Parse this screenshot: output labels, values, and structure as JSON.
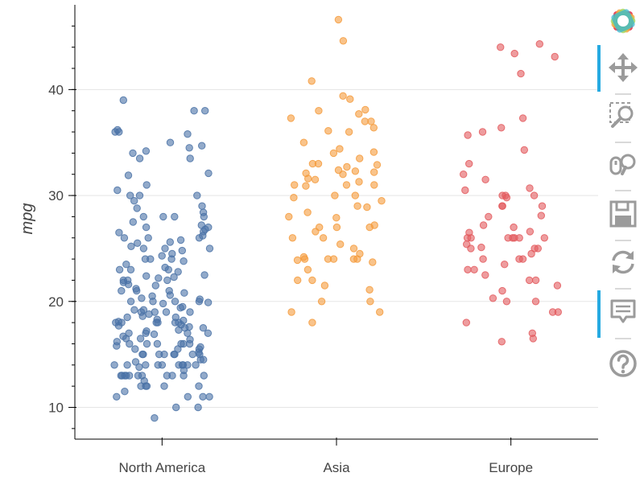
{
  "chart_data": {
    "type": "scatter",
    "ylabel": "mpg",
    "xlabel": "",
    "categories": [
      "North America",
      "Asia",
      "Europe"
    ],
    "ylim": [
      7,
      48
    ],
    "yticks": [
      10,
      20,
      30,
      40
    ],
    "grid": "horizontal",
    "series": [
      {
        "color": "#4a72a6",
        "values": [
          39.0,
          38.0,
          38.0,
          36.2,
          36.0,
          36.0,
          35.8,
          35.0,
          34.7,
          34.5,
          34.2,
          34.0,
          33.5,
          33.5,
          32.1,
          31.9,
          31.0,
          30.5,
          30.0,
          30.0,
          30.0,
          29.5,
          29.0,
          28.8,
          28.4,
          28.0,
          28.0,
          28.0,
          28.0,
          27.5,
          27.2,
          27.0,
          27.0,
          26.8,
          26.6,
          26.5,
          26.2,
          26.0,
          26.0,
          26.0,
          25.8,
          25.6,
          25.5,
          25.2,
          25.0,
          25.0,
          25.0,
          24.8,
          24.5,
          24.3,
          24.0,
          24.0,
          24.0,
          23.8,
          23.5,
          23.2,
          23.0,
          23.0,
          23.0,
          22.8,
          22.5,
          22.4,
          22.3,
          22.2,
          22.0,
          22.0,
          22.0,
          21.8,
          21.6,
          21.5,
          21.2,
          21.0,
          21.0,
          21.0,
          20.8,
          20.6,
          20.5,
          20.3,
          20.2,
          20.0,
          20.0,
          20.0,
          20.0,
          19.9,
          19.8,
          19.5,
          19.4,
          19.2,
          19.2,
          19.0,
          19.0,
          19.0,
          19.0,
          18.8,
          18.6,
          18.5,
          18.5,
          18.3,
          18.2,
          18.1,
          18.0,
          18.0,
          18.0,
          18.0,
          18.0,
          18.0,
          17.8,
          17.7,
          17.6,
          17.5,
          17.5,
          17.3,
          17.2,
          17.0,
          17.0,
          17.0,
          17.0,
          16.9,
          16.7,
          16.5,
          16.5,
          16.4,
          16.2,
          16.0,
          16.0,
          16.0,
          16.0,
          16.0,
          16.0,
          15.8,
          15.7,
          15.5,
          15.5,
          15.5,
          15.2,
          15.0,
          15.0,
          15.0,
          15.0,
          15.0,
          15.0,
          15.0,
          15.0,
          14.5,
          14.5,
          14.3,
          14.0,
          14.0,
          14.0,
          14.0,
          14.0,
          14.0,
          14.0,
          14.0,
          14.0,
          14.0,
          13.8,
          13.5,
          13.0,
          13.0,
          13.0,
          13.0,
          13.0,
          13.0,
          13.0,
          13.0,
          13.0,
          13.0,
          13.0,
          12.5,
          12.0,
          12.0,
          12.0,
          12.0,
          12.0,
          11.5,
          11.0,
          11.0,
          11.0,
          11.0,
          10.0,
          10.0,
          9.0
        ]
      },
      {
        "color": "#f59b3c",
        "values": [
          46.6,
          44.6,
          40.8,
          39.4,
          39.1,
          38.1,
          38.0,
          37.7,
          37.3,
          37.0,
          37.0,
          36.4,
          36.1,
          36.0,
          35.0,
          34.4,
          34.1,
          34.0,
          33.5,
          33.0,
          33.0,
          32.9,
          32.7,
          32.4,
          32.3,
          32.2,
          32.1,
          32.0,
          31.6,
          31.5,
          31.3,
          31.0,
          31.0,
          31.0,
          30.9,
          30.0,
          30.0,
          29.8,
          29.5,
          29.0,
          28.9,
          28.4,
          28.0,
          27.9,
          27.2,
          27.0,
          27.0,
          27.0,
          26.6,
          26.0,
          26.0,
          25.4,
          25.0,
          24.5,
          24.2,
          24.0,
          24.0,
          24.0,
          24.0,
          24.0,
          23.9,
          23.7,
          23.0,
          22.0,
          22.0,
          21.5,
          21.1,
          20.0,
          20.0,
          19.0,
          19.0,
          18.0
        ]
      },
      {
        "color": "#e35a5e",
        "values": [
          44.3,
          44.0,
          43.4,
          43.1,
          41.5,
          37.3,
          36.4,
          36.0,
          35.7,
          34.3,
          33.0,
          32.0,
          31.5,
          30.7,
          30.5,
          30.0,
          30.0,
          30.0,
          29.8,
          29.0,
          29.0,
          29.0,
          28.1,
          28.0,
          27.2,
          27.0,
          26.6,
          26.5,
          26.0,
          26.0,
          26.0,
          26.0,
          26.0,
          26.0,
          26.0,
          25.4,
          25.1,
          25.0,
          25.0,
          25.0,
          24.5,
          24.0,
          24.0,
          24.0,
          23.5,
          23.0,
          23.0,
          22.5,
          22.0,
          22.0,
          21.5,
          21.0,
          20.3,
          20.0,
          20.0,
          19.0,
          19.0,
          18.0,
          17.0,
          16.5,
          16.2
        ]
      }
    ]
  },
  "toolbar": {
    "tools": [
      {
        "icon": "bokeh-logo-icon"
      },
      {
        "icon": "pan-move-icon"
      },
      {
        "icon": "box-zoom-icon"
      },
      {
        "icon": "wheel-zoom-icon"
      },
      {
        "icon": "save-icon"
      },
      {
        "icon": "reset-icon"
      },
      {
        "icon": "hover-tooltip-icon"
      },
      {
        "icon": "help-icon"
      }
    ],
    "active_color": "#26aae1",
    "icon_color": "#9b9b9b"
  }
}
